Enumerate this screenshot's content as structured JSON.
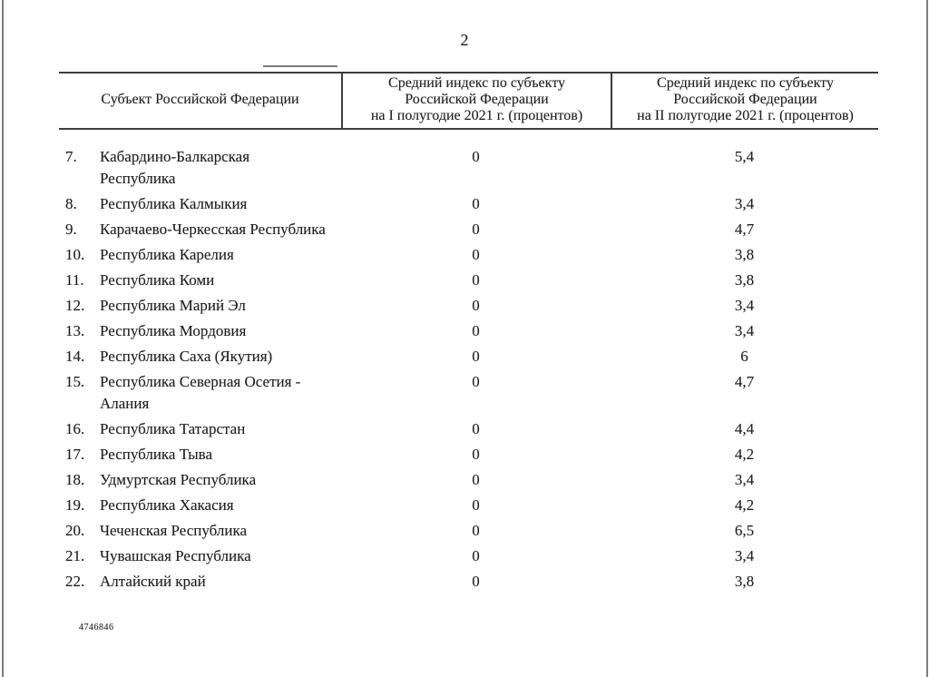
{
  "page": {
    "number": "2",
    "footer_code": "4746846"
  },
  "table": {
    "headers": {
      "subject": "Субъект Российской Федерации",
      "h1_2021": "Средний индекс по субъекту\nРоссийской Федерации\nна I полугодие 2021 г. (процентов)",
      "h2_2021": "Средний индекс по субъекту\nРоссийской Федерации\nна II полугодие 2021 г. (процентов)"
    },
    "rows": [
      {
        "num": "7.",
        "name": "Кабардино-Балкарская\nРеспублика",
        "h1": "0",
        "h2": "5,4"
      },
      {
        "num": "8.",
        "name": "Республика Калмыкия",
        "h1": "0",
        "h2": "3,4"
      },
      {
        "num": "9.",
        "name": "Карачаево-Черкесская Республика",
        "h1": "0",
        "h2": "4,7"
      },
      {
        "num": "10.",
        "name": "Республика Карелия",
        "h1": "0",
        "h2": "3,8"
      },
      {
        "num": "11.",
        "name": "Республика Коми",
        "h1": "0",
        "h2": "3,8"
      },
      {
        "num": "12.",
        "name": "Республика Марий Эл",
        "h1": "0",
        "h2": "3,4"
      },
      {
        "num": "13.",
        "name": "Республика Мордовия",
        "h1": "0",
        "h2": "3,4"
      },
      {
        "num": "14.",
        "name": "Республика Саха (Якутия)",
        "h1": "0",
        "h2": "6"
      },
      {
        "num": "15.",
        "name": "Республика Северная Осетия -\nАлания",
        "h1": "0",
        "h2": "4,7"
      },
      {
        "num": "16.",
        "name": "Республика Татарстан",
        "h1": "0",
        "h2": "4,4"
      },
      {
        "num": "17.",
        "name": "Республика Тыва",
        "h1": "0",
        "h2": "4,2"
      },
      {
        "num": "18.",
        "name": "Удмуртская Республика",
        "h1": "0",
        "h2": "3,4"
      },
      {
        "num": "19.",
        "name": "Республика Хакасия",
        "h1": "0",
        "h2": "4,2"
      },
      {
        "num": "20.",
        "name": "Чеченская Республика",
        "h1": "0",
        "h2": "6,5"
      },
      {
        "num": "21.",
        "name": "Чувашская Республика",
        "h1": "0",
        "h2": "3,4"
      },
      {
        "num": "22.",
        "name": "Алтайский край",
        "h1": "0",
        "h2": "3,8"
      }
    ]
  }
}
